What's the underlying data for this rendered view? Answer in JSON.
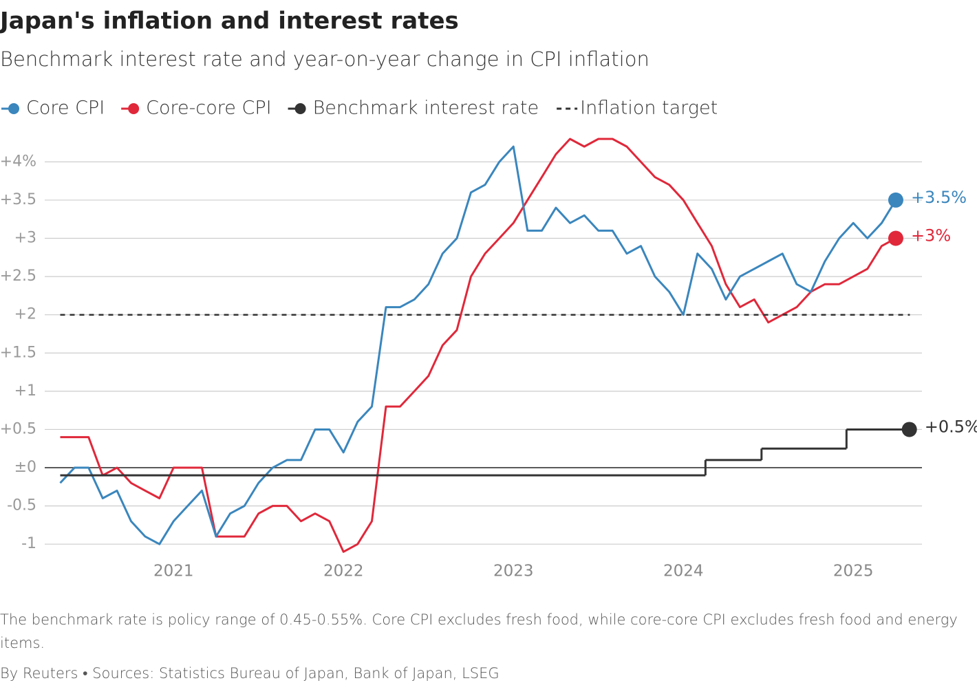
{
  "chart_data": {
    "type": "line",
    "title": "Japan's inflation and interest rates",
    "subtitle": "Benchmark interest rate and year-on-year change in CPI inflation",
    "footnote": "The benchmark rate is policy range of 0.45-0.55%. Core CPI excludes fresh food, while core-core CPI excludes fresh food and energy items.",
    "source": "By Reuters • Sources: Statistics Bureau of Japan, Bank of Japan, LSEG",
    "xlim": [
      2020.25,
      2025.4
    ],
    "xticks": [
      2021,
      2022,
      2023,
      2024,
      2025
    ],
    "ylim": [
      -1.25,
      4.3
    ],
    "yticks": [
      {
        "value": -1,
        "label": "-1"
      },
      {
        "value": -0.5,
        "label": "-0.5"
      },
      {
        "value": 0,
        "label": "±0"
      },
      {
        "value": 0.5,
        "label": "+0.5"
      },
      {
        "value": 1,
        "label": "+1"
      },
      {
        "value": 1.5,
        "label": "+1.5"
      },
      {
        "value": 2,
        "label": "+2"
      },
      {
        "value": 2.5,
        "label": "+2.5"
      },
      {
        "value": 3,
        "label": "+3"
      },
      {
        "value": 3.5,
        "label": "+3.5"
      },
      {
        "value": 4,
        "label": "+4%"
      }
    ],
    "grid": true,
    "x": [
      2020.333,
      2020.417,
      2020.5,
      2020.583,
      2020.667,
      2020.75,
      2020.833,
      2020.917,
      2021,
      2021.083,
      2021.167,
      2021.25,
      2021.333,
      2021.417,
      2021.5,
      2021.583,
      2021.667,
      2021.75,
      2021.833,
      2021.917,
      2022,
      2022.083,
      2022.167,
      2022.25,
      2022.333,
      2022.417,
      2022.5,
      2022.583,
      2022.667,
      2022.75,
      2022.833,
      2022.917,
      2023,
      2023.083,
      2023.167,
      2023.25,
      2023.333,
      2023.417,
      2023.5,
      2023.583,
      2023.667,
      2023.75,
      2023.833,
      2023.917,
      2024,
      2024.083,
      2024.167,
      2024.25,
      2024.333,
      2024.417,
      2024.5,
      2024.583,
      2024.667,
      2024.75,
      2024.833,
      2024.917,
      2025,
      2025.083,
      2025.167,
      2025.25
    ],
    "series": [
      {
        "name": "Core-core CPI",
        "color": "#e0283a",
        "style": "solid",
        "values": [
          0.4,
          0.4,
          0.4,
          -0.1,
          0.0,
          -0.2,
          -0.3,
          -0.4,
          0.0,
          0.0,
          0.0,
          -0.9,
          -0.9,
          -0.9,
          -0.6,
          -0.5,
          -0.5,
          -0.7,
          -0.6,
          -0.7,
          -1.1,
          -1.0,
          -0.7,
          0.8,
          0.8,
          1.0,
          1.2,
          1.6,
          1.8,
          2.5,
          2.8,
          3.0,
          3.2,
          3.5,
          3.8,
          4.1,
          4.3,
          4.2,
          4.3,
          4.3,
          4.2,
          4.0,
          3.8,
          3.7,
          3.5,
          3.2,
          2.9,
          2.4,
          2.1,
          2.2,
          1.9,
          2.0,
          2.1,
          2.3,
          2.4,
          2.4,
          2.5,
          2.6,
          2.9,
          3.0
        ],
        "value_labels": [
          null,
          null,
          null,
          null,
          null,
          null,
          null,
          null,
          null,
          null,
          null,
          null,
          null,
          null,
          null,
          null,
          null,
          null,
          null,
          null,
          null,
          null,
          null,
          null,
          null,
          null,
          null,
          null,
          null,
          null,
          null,
          null,
          null,
          null,
          null,
          null,
          null,
          null,
          null,
          null,
          null,
          null,
          null,
          null,
          null,
          null,
          null,
          null,
          null,
          null,
          null,
          null,
          null,
          null,
          null,
          null,
          null,
          null,
          null,
          "+3%"
        ]
      },
      {
        "name": "Core CPI",
        "color": "#3a86bd",
        "style": "solid",
        "values": [
          -0.2,
          0.0,
          0.0,
          -0.4,
          -0.3,
          -0.7,
          -0.9,
          -1.0,
          -0.7,
          -0.5,
          -0.3,
          -0.9,
          -0.6,
          -0.5,
          -0.2,
          0.0,
          0.1,
          0.1,
          0.5,
          0.5,
          0.2,
          0.6,
          0.8,
          2.1,
          2.1,
          2.2,
          2.4,
          2.8,
          3.0,
          3.6,
          3.7,
          4.0,
          4.2,
          3.1,
          3.1,
          3.4,
          3.2,
          3.3,
          3.1,
          3.1,
          2.8,
          2.9,
          2.5,
          2.3,
          2.0,
          2.8,
          2.6,
          2.2,
          2.5,
          2.6,
          2.7,
          2.8,
          2.4,
          2.3,
          2.7,
          3.0,
          3.2,
          3.0,
          3.2,
          3.5
        ],
        "value_labels": [
          null,
          null,
          null,
          null,
          null,
          null,
          null,
          null,
          null,
          null,
          null,
          null,
          null,
          null,
          null,
          null,
          null,
          null,
          null,
          null,
          null,
          null,
          null,
          null,
          null,
          null,
          null,
          null,
          null,
          null,
          null,
          null,
          null,
          null,
          null,
          null,
          null,
          null,
          null,
          null,
          null,
          null,
          null,
          null,
          null,
          null,
          null,
          null,
          null,
          null,
          null,
          null,
          null,
          null,
          null,
          null,
          null,
          null,
          null,
          "+3.5%"
        ]
      },
      {
        "name": "Benchmark interest rate",
        "color": "#333333",
        "style": "step",
        "x": [
          2020.333,
          2024.13,
          2024.46,
          2024.96,
          2025.33
        ],
        "values": [
          -0.1,
          0.1,
          0.25,
          0.5,
          0.5
        ],
        "value_labels": [
          null,
          null,
          null,
          null,
          "+0.5%"
        ]
      },
      {
        "name": "Inflation target",
        "color": "#333333",
        "style": "dashed",
        "x": [
          2020.333,
          2025.333
        ],
        "values": [
          2,
          2
        ]
      }
    ],
    "legend_order": [
      1,
      0,
      2,
      3
    ]
  }
}
